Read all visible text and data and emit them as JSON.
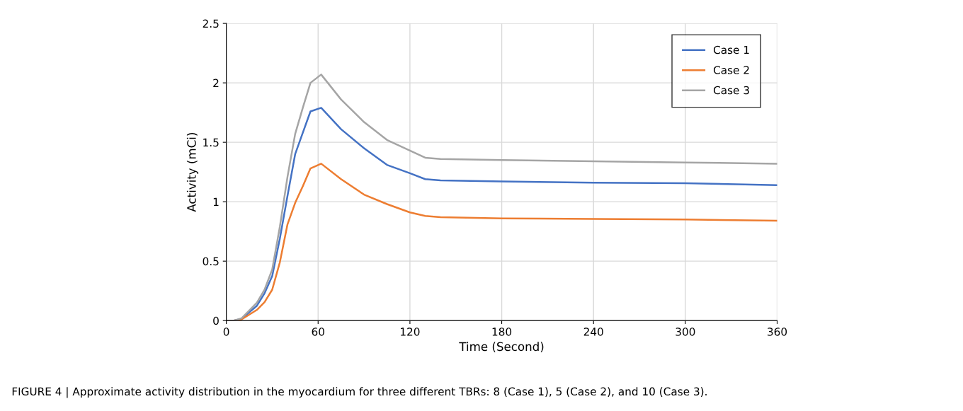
{
  "chart_data": {
    "type": "line",
    "xlabel": "Time (Second)",
    "ylabel": "Activity (mCi)",
    "x": [
      0,
      5,
      10,
      20,
      25,
      30,
      35,
      40,
      45,
      50,
      55,
      62,
      75,
      90,
      105,
      120,
      130,
      140,
      180,
      240,
      300,
      360
    ],
    "series": [
      {
        "name": "Case 1",
        "color": "#4472c4",
        "values": [
          0,
          0,
          0.015,
          0.125,
          0.23,
          0.375,
          0.69,
          1.05,
          1.4,
          1.58,
          1.76,
          1.79,
          1.61,
          1.45,
          1.31,
          1.24,
          1.19,
          1.18,
          1.17,
          1.16,
          1.155,
          1.14
        ]
      },
      {
        "name": "Case 2",
        "color": "#ed7d31",
        "values": [
          0,
          0,
          0.01,
          0.09,
          0.155,
          0.26,
          0.49,
          0.81,
          0.99,
          1.13,
          1.28,
          1.32,
          1.19,
          1.06,
          0.98,
          0.91,
          0.88,
          0.87,
          0.86,
          0.855,
          0.85,
          0.84
        ]
      },
      {
        "name": "Case 3",
        "color": "#a5a5a5",
        "values": [
          0,
          0,
          0.02,
          0.15,
          0.26,
          0.43,
          0.79,
          1.21,
          1.57,
          1.79,
          2.0,
          2.07,
          1.86,
          1.67,
          1.52,
          1.43,
          1.37,
          1.36,
          1.35,
          1.34,
          1.33,
          1.32
        ]
      }
    ],
    "xlim": [
      0,
      360
    ],
    "xticks": [
      0,
      60,
      120,
      180,
      240,
      300,
      360
    ],
    "ylim": [
      0,
      2.5
    ],
    "yticks": [
      0,
      {
        "value": 0.5,
        "label": "0.5"
      },
      1,
      {
        "value": 1.5,
        "label": "1.5"
      },
      2,
      {
        "value": 2.5,
        "label": "2.5"
      }
    ],
    "grid": true,
    "legend": "top right",
    "marker": "none",
    "line_style": "solid",
    "annotations": [
      "FIGURE 4 | Approximate activity distribution in the myocardium for three different TBRs: 8 (Case 1), 5 (Case 2), and 10 (Case 3)."
    ]
  }
}
